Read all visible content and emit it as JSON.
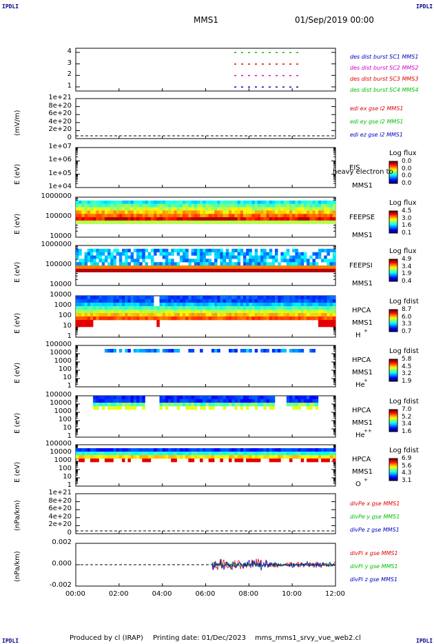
{
  "corners": {
    "tl": "IPDLI",
    "tr": "IPDLI",
    "bl": "IPDLI",
    "br": "IPDLI"
  },
  "header": {
    "mission": "MMS1",
    "datetime": "01/Sep/2019 00:00"
  },
  "footer": {
    "produced": "Produced by cl (IRAP)",
    "printed": "Printing date: 01/Dec/2023",
    "script": "mms_mms1_srvy_vue_web2.cl"
  },
  "colors": {
    "red": "#e00000",
    "green": "#00c000",
    "blue": "#0000c0",
    "magenta": "#d000d0"
  },
  "chart_data": [
    {
      "type": "scatter",
      "name": "burst",
      "yticks": [
        "4",
        "3",
        "2",
        "1"
      ],
      "legend": [
        {
          "text": "des dist burst SC1 MMS1",
          "color": "#0000c0"
        },
        {
          "text": "des dist burst SC2 MMS2",
          "color": "#d000d0"
        },
        {
          "text": "des dist burst SC3 MMS3",
          "color": "#e00000"
        },
        {
          "text": "des dist burst SC4 MMS4",
          "color": "#00c000"
        }
      ]
    },
    {
      "type": "line",
      "name": "edi",
      "ylabel": "(mV/m)",
      "yticks": [
        "1e+21",
        "8e+20",
        "6e+20",
        "4e+20",
        "2e+20",
        "0"
      ],
      "legend": [
        {
          "text": "edi ex gse l2 MMS1",
          "color": "#e00000"
        },
        {
          "text": "edi ey gse l2 MMS1",
          "color": "#00c000"
        },
        {
          "text": "edi ez gse l2 MMS1",
          "color": "#0000c0"
        }
      ]
    },
    {
      "type": "heatmap",
      "name": "eis",
      "ylabel": "E (eV)",
      "yticks": [
        "1e+07",
        "1e+06",
        "1e+05",
        "1e+04"
      ],
      "instrument": "EIS",
      "overlay": "heavy electron to",
      "sc": "MMS1",
      "cbar_title": "Log flux",
      "cbar_ticks": [
        "0.0",
        "0.0",
        "0.0",
        "0.0"
      ]
    },
    {
      "type": "heatmap",
      "name": "feeps-e",
      "ylabel": "E (eV)",
      "yticks": [
        "1000000",
        "100000",
        "10000"
      ],
      "instrument": "FEEPSE",
      "sc": "MMS1",
      "cbar_title": "Log flux",
      "cbar_ticks": [
        "4.5",
        "3.0",
        "1.6",
        "0.1"
      ]
    },
    {
      "type": "heatmap",
      "name": "feeps-i",
      "ylabel": "E (eV)",
      "yticks": [
        "1000000",
        "100000",
        "10000"
      ],
      "instrument": "FEEPSI",
      "sc": "MMS1",
      "cbar_title": "Log flux",
      "cbar_ticks": [
        "4.9",
        "3.4",
        "1.9",
        "0.4"
      ]
    },
    {
      "type": "heatmap",
      "name": "hpca-h",
      "ylabel": "E (eV)",
      "yticks": [
        "10000",
        "1000",
        "100",
        "10",
        "1"
      ],
      "instrument": "HPCA",
      "sc": "MMS1",
      "species": "H",
      "charge": "+",
      "cbar_title": "Log fdist",
      "cbar_ticks": [
        "8.7",
        "6.0",
        "3.3",
        "0.7"
      ]
    },
    {
      "type": "heatmap",
      "name": "hpca-he",
      "ylabel": "E (eV)",
      "yticks": [
        "100000",
        "10000",
        "1000",
        "100",
        "10",
        "1"
      ],
      "instrument": "HPCA",
      "sc": "MMS1",
      "species": "He",
      "charge": "+",
      "cbar_title": "Log fdist",
      "cbar_ticks": [
        "5.8",
        "4.5",
        "3.2",
        "1.9"
      ]
    },
    {
      "type": "heatmap",
      "name": "hpca-hepp",
      "ylabel": "E (eV)",
      "yticks": [
        "100000",
        "10000",
        "1000",
        "100",
        "10",
        "1"
      ],
      "instrument": "HPCA",
      "sc": "MMS1",
      "species": "He",
      "charge": "++",
      "cbar_title": "Log fdist",
      "cbar_ticks": [
        "7.0",
        "5.2",
        "3.4",
        "1.6"
      ]
    },
    {
      "type": "heatmap",
      "name": "hpca-o",
      "ylabel": "E (eV)",
      "yticks": [
        "100000",
        "10000",
        "1000",
        "100",
        "10",
        "1"
      ],
      "instrument": "HPCA",
      "sc": "MMS1",
      "species": "O",
      "charge": "+",
      "cbar_title": "Log fdist",
      "cbar_ticks": [
        "6.9",
        "5.6",
        "4.3",
        "3.1"
      ]
    },
    {
      "type": "line",
      "name": "divpe",
      "ylabel": "(nPa/km)",
      "yticks": [
        "1e+21",
        "8e+20",
        "6e+20",
        "4e+20",
        "2e+20",
        "0"
      ],
      "legend": [
        {
          "text": "divPe x gse MMS1",
          "color": "#e00000"
        },
        {
          "text": "divPe y gse MMS1",
          "color": "#00c000"
        },
        {
          "text": "divPe z gse MMS1",
          "color": "#0000c0"
        }
      ]
    },
    {
      "type": "line",
      "name": "divpi",
      "ylabel": "(nPa/km)",
      "yticks": [
        "0.002",
        "0.000",
        "-0.002"
      ],
      "legend": [
        {
          "text": "divPi x gse MMS1",
          "color": "#e00000"
        },
        {
          "text": "divPi y gse MMS1",
          "color": "#00c000"
        },
        {
          "text": "divPi z gse MMS1",
          "color": "#0000c0"
        }
      ]
    }
  ],
  "xticks": [
    "00:00",
    "02:00",
    "04:00",
    "06:00",
    "08:00",
    "10:00",
    "12:00"
  ]
}
